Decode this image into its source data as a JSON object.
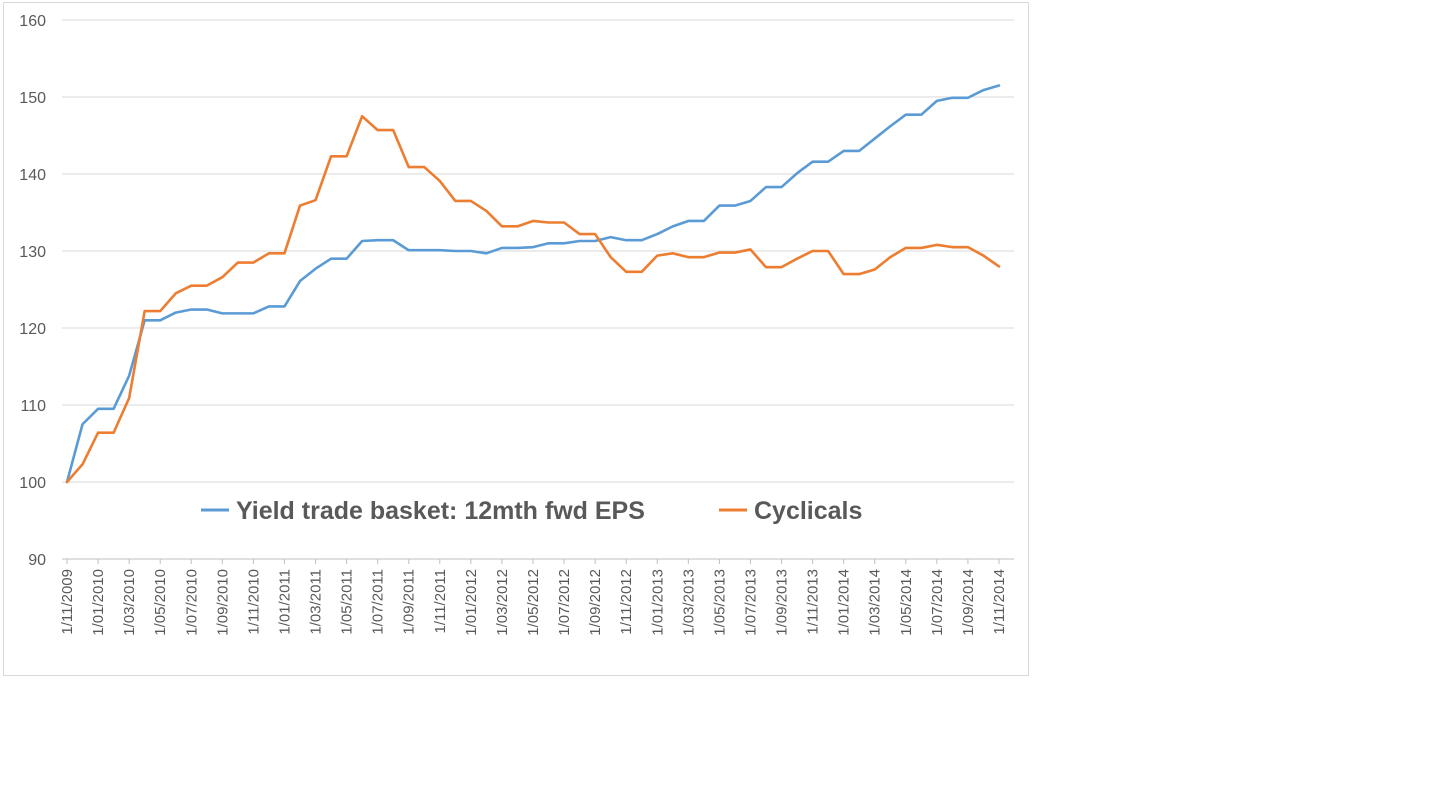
{
  "chart_data": {
    "type": "line",
    "title": "",
    "xlabel": "",
    "ylabel": "",
    "ylim": [
      90,
      160
    ],
    "yticks": [
      90,
      100,
      110,
      120,
      130,
      140,
      150,
      160
    ],
    "grid": "horizontal",
    "legend_position": "inside-bottom",
    "x": [
      "1/11/2009",
      "1/12/2009",
      "1/01/2010",
      "1/02/2010",
      "1/03/2010",
      "1/04/2010",
      "1/05/2010",
      "1/06/2010",
      "1/07/2010",
      "1/08/2010",
      "1/09/2010",
      "1/10/2010",
      "1/11/2010",
      "1/12/2010",
      "1/01/2011",
      "1/02/2011",
      "1/03/2011",
      "1/04/2011",
      "1/05/2011",
      "1/06/2011",
      "1/07/2011",
      "1/08/2011",
      "1/09/2011",
      "1/10/2011",
      "1/11/2011",
      "1/12/2011",
      "1/01/2012",
      "1/02/2012",
      "1/03/2012",
      "1/04/2012",
      "1/05/2012",
      "1/06/2012",
      "1/07/2012",
      "1/08/2012",
      "1/09/2012",
      "1/10/2012",
      "1/11/2012",
      "1/12/2012",
      "1/01/2013",
      "1/02/2013",
      "1/03/2013",
      "1/04/2013",
      "1/05/2013",
      "1/06/2013",
      "1/07/2013",
      "1/08/2013",
      "1/09/2013",
      "1/10/2013",
      "1/11/2013",
      "1/12/2013",
      "1/01/2014",
      "1/02/2014",
      "1/03/2014",
      "1/04/2014",
      "1/05/2014",
      "1/06/2014",
      "1/07/2014",
      "1/08/2014",
      "1/09/2014",
      "1/10/2014",
      "1/11/2014"
    ],
    "xtick_labels": [
      "1/11/2009",
      "1/01/2010",
      "1/03/2010",
      "1/05/2010",
      "1/07/2010",
      "1/09/2010",
      "1/11/2010",
      "1/01/2011",
      "1/03/2011",
      "1/05/2011",
      "1/07/2011",
      "1/09/2011",
      "1/11/2011",
      "1/01/2012",
      "1/03/2012",
      "1/05/2012",
      "1/07/2012",
      "1/09/2012",
      "1/11/2012",
      "1/01/2013",
      "1/03/2013",
      "1/05/2013",
      "1/07/2013",
      "1/09/2013",
      "1/11/2013",
      "1/01/2014",
      "1/03/2014",
      "1/05/2014",
      "1/07/2014",
      "1/09/2014",
      "1/11/2014"
    ],
    "series": [
      {
        "name": "Yield trade basket: 12mth fwd EPS",
        "color": "#5b9bd5",
        "values": [
          100,
          107.5,
          109.5,
          109.5,
          113.8,
          121,
          121,
          122,
          122.4,
          122.4,
          121.9,
          121.9,
          121.9,
          122.8,
          122.8,
          126.1,
          127.7,
          129,
          129,
          131.3,
          131.4,
          131.4,
          130.1,
          130.1,
          130.1,
          130,
          130,
          129.7,
          130.4,
          130.4,
          130.5,
          131,
          131,
          131.3,
          131.3,
          131.8,
          131.4,
          131.4,
          132.2,
          133.2,
          133.9,
          133.9,
          135.9,
          135.9,
          136.5,
          138.3,
          138.3,
          140.1,
          141.6,
          141.6,
          143,
          143,
          144.6,
          146.2,
          147.7,
          147.7,
          149.5,
          149.9,
          149.9,
          150.9,
          151.5
        ]
      },
      {
        "name": "Cyclicals",
        "color": "#ed7d31",
        "values": [
          100,
          102.3,
          106.4,
          106.4,
          110.9,
          122.2,
          122.2,
          124.5,
          125.5,
          125.5,
          126.6,
          128.5,
          128.5,
          129.7,
          129.7,
          135.9,
          136.6,
          142.3,
          142.3,
          147.5,
          145.7,
          145.7,
          140.9,
          140.9,
          139.1,
          136.5,
          136.5,
          135.2,
          133.2,
          133.2,
          133.9,
          133.7,
          133.7,
          132.2,
          132.2,
          129.2,
          127.3,
          127.3,
          129.4,
          129.7,
          129.2,
          129.2,
          129.8,
          129.8,
          130.2,
          127.9,
          127.9,
          129,
          130,
          130,
          127,
          127,
          127.6,
          129.2,
          130.4,
          130.4,
          130.8,
          130.5,
          130.5,
          129.4,
          128
        ]
      }
    ]
  }
}
